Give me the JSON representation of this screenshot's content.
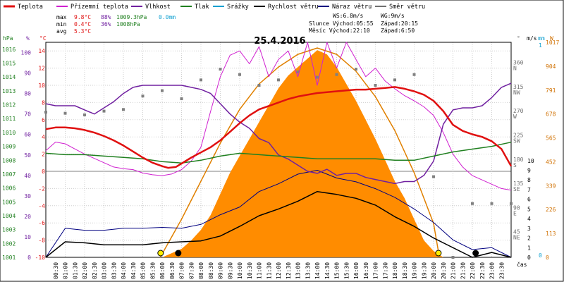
{
  "chart_data": {
    "type": "line",
    "title": "25.4.2016",
    "legend": [
      {
        "name": "Teplota",
        "color": "#e01010"
      },
      {
        "name": "Přízemní teplota",
        "color": "#d020d0"
      },
      {
        "name": "Vlhkost",
        "color": "#7020a0"
      },
      {
        "name": "Tlak",
        "color": "#208020"
      },
      {
        "name": "Srážky",
        "color": "#10a0d0"
      },
      {
        "name": "Rychlost větru",
        "color": "#000000"
      },
      {
        "name": "Náraz větru",
        "color": "#000080"
      },
      {
        "name": "Směr větru",
        "color": "#707070"
      }
    ],
    "stats": {
      "labels": [
        "max",
        "min",
        "avg"
      ],
      "temp": [
        "9.8°C",
        "0.4°C",
        "5.3°C"
      ],
      "hum": [
        "88%",
        "36%",
        ""
      ],
      "press": [
        "1009.3hPa",
        "1008hPa",
        ""
      ],
      "rain": [
        "0.0mm",
        "",
        ""
      ]
    },
    "info": {
      "ws": "WS:6.8m/s",
      "wg": "WG:9m/s",
      "sun_rise": "Slunce Východ:05:55",
      "sun_set": "Západ:20:15",
      "moon_rise": "Měsíc Východ:22:10",
      "moon_set": "Západ:6:50"
    },
    "axes": {
      "hpa_unit": "hPa",
      "pct_unit": "%",
      "c_unit": "°C",
      "deg_unit": "°",
      "ms_unit": "m/s",
      "mm_unit": "mm",
      "w_unit": "W",
      "time_label": "čas",
      "hpa_ticks": [
        "1001",
        "1002",
        "1003",
        "1004",
        "1005",
        "1006",
        "1007",
        "1008",
        "1009",
        "1010",
        "1011",
        "1012",
        "1013",
        "1014",
        "1015",
        "1016"
      ],
      "pct_ticks": [
        "0",
        "10",
        "20",
        "30",
        "40",
        "50",
        "60",
        "70",
        "80",
        "90",
        "100"
      ],
      "c_ticks": [
        "-10",
        "-8",
        "-6",
        "-4",
        "-2",
        "0",
        "2",
        "4",
        "6",
        "8",
        "10",
        "12",
        "14"
      ],
      "deg_ticks": [
        "45",
        "90",
        "135",
        "180",
        "225",
        "270",
        "315",
        "360"
      ],
      "dir_ticks": [
        "NE",
        "E",
        "SE",
        "S",
        "SW",
        "W",
        "NW",
        "N"
      ],
      "ms_ticks": [
        "0",
        "1",
        "2",
        "3",
        "4",
        "5",
        "6",
        "7",
        "8",
        "9",
        "10"
      ],
      "mm_ticks": [
        "0",
        "1"
      ],
      "w_ticks": [
        "0",
        "113",
        "226",
        "339",
        "452",
        "565",
        "678",
        "791",
        "904",
        "1017"
      ],
      "x_ticks": [
        "00:30",
        "01:00",
        "01:30",
        "02:00",
        "02:30",
        "03:00",
        "03:30",
        "04:00",
        "04:30",
        "05:00",
        "05:30",
        "06:00",
        "06:30",
        "07:00",
        "07:30",
        "08:00",
        "08:30",
        "09:00",
        "09:30",
        "10:00",
        "10:30",
        "11:00",
        "11:30",
        "12:00",
        "12:30",
        "13:00",
        "13:30",
        "14:00",
        "14:30",
        "15:00",
        "15:30",
        "16:00",
        "16:30",
        "17:00",
        "17:30",
        "18:00",
        "18:30",
        "19:00",
        "19:30",
        "20:00",
        "20:30",
        "21:00",
        "21:30",
        "22:00",
        "22:30",
        "23:00",
        "23:30"
      ]
    },
    "ranges": {
      "hours": [
        0,
        24
      ],
      "temp_c": [
        -10,
        15
      ],
      "humidity_pct": [
        0,
        105
      ],
      "pressure_hpa": [
        1001,
        1016.5
      ],
      "wind_ms": [
        0,
        10
      ],
      "radiation_w": [
        0,
        1017
      ],
      "direction_deg": [
        0,
        400
      ]
    },
    "series": {
      "teplota": [
        [
          0,
          4.9
        ],
        [
          0.5,
          5.1
        ],
        [
          1,
          5.1
        ],
        [
          1.5,
          5
        ],
        [
          2,
          4.8
        ],
        [
          2.5,
          4.5
        ],
        [
          3,
          4.1
        ],
        [
          3.5,
          3.6
        ],
        [
          4,
          3
        ],
        [
          4.5,
          2.3
        ],
        [
          5,
          1.6
        ],
        [
          5.5,
          1
        ],
        [
          6,
          0.6
        ],
        [
          6.3,
          0.4
        ],
        [
          6.7,
          0.5
        ],
        [
          7,
          0.9
        ],
        [
          7.5,
          1.6
        ],
        [
          8,
          2.2
        ],
        [
          8.5,
          2.8
        ],
        [
          9,
          3.6
        ],
        [
          9.5,
          4.6
        ],
        [
          10,
          5.6
        ],
        [
          10.5,
          6.5
        ],
        [
          11,
          7.2
        ],
        [
          11.5,
          7.6
        ],
        [
          12,
          8
        ],
        [
          12.5,
          8.4
        ],
        [
          13,
          8.7
        ],
        [
          13.5,
          8.9
        ],
        [
          14,
          9.1
        ],
        [
          14.5,
          9.2
        ],
        [
          15,
          9.3
        ],
        [
          15.5,
          9.4
        ],
        [
          16,
          9.5
        ],
        [
          16.5,
          9.5
        ],
        [
          17,
          9.6
        ],
        [
          17.5,
          9.7
        ],
        [
          18,
          9.8
        ],
        [
          18.5,
          9.6
        ],
        [
          19,
          9.3
        ],
        [
          19.5,
          8.9
        ],
        [
          20,
          8.2
        ],
        [
          20.5,
          7
        ],
        [
          21,
          5.4
        ],
        [
          21.5,
          4.7
        ],
        [
          22,
          4.3
        ],
        [
          22.5,
          4
        ],
        [
          23,
          3.5
        ],
        [
          23.5,
          2.6
        ],
        [
          24,
          0.6
        ]
      ],
      "prizemni": [
        [
          0,
          2.4
        ],
        [
          0.5,
          3.4
        ],
        [
          1,
          3.2
        ],
        [
          1.5,
          2.6
        ],
        [
          2,
          2
        ],
        [
          2.5,
          1.5
        ],
        [
          3,
          1
        ],
        [
          3.5,
          0.5
        ],
        [
          4,
          0.3
        ],
        [
          4.5,
          0.2
        ],
        [
          5,
          -0.2
        ],
        [
          5.5,
          -0.4
        ],
        [
          6,
          -0.5
        ],
        [
          6.5,
          -0.3
        ],
        [
          7,
          0.2
        ],
        [
          7.5,
          1.2
        ],
        [
          8,
          2.8
        ],
        [
          8.5,
          7
        ],
        [
          9,
          11
        ],
        [
          9.5,
          13.5
        ],
        [
          10,
          14
        ],
        [
          10.5,
          12.5
        ],
        [
          11,
          14.5
        ],
        [
          11.5,
          11
        ],
        [
          12,
          13
        ],
        [
          12.5,
          14
        ],
        [
          13,
          11
        ],
        [
          13.5,
          15
        ],
        [
          14,
          10
        ],
        [
          14.5,
          15
        ],
        [
          15,
          12
        ],
        [
          15.5,
          15
        ],
        [
          16,
          13
        ],
        [
          16.5,
          11
        ],
        [
          17,
          12
        ],
        [
          17.5,
          10.5
        ],
        [
          18,
          9.6
        ],
        [
          18.5,
          8.8
        ],
        [
          19,
          8.2
        ],
        [
          19.5,
          7.5
        ],
        [
          20,
          6.5
        ],
        [
          20.5,
          4.5
        ],
        [
          21,
          2
        ],
        [
          21.5,
          0.5
        ],
        [
          22,
          -0.5
        ],
        [
          22.5,
          -1
        ],
        [
          23,
          -1.5
        ],
        [
          23.5,
          -2
        ],
        [
          24,
          -2.2
        ]
      ],
      "vlhkost": [
        [
          0,
          75
        ],
        [
          0.5,
          74
        ],
        [
          1,
          74
        ],
        [
          1.5,
          74
        ],
        [
          2,
          72
        ],
        [
          2.5,
          70
        ],
        [
          3,
          73
        ],
        [
          3.5,
          76
        ],
        [
          4,
          80
        ],
        [
          4.5,
          83
        ],
        [
          5,
          84
        ],
        [
          5.5,
          84
        ],
        [
          6,
          84
        ],
        [
          6.5,
          84
        ],
        [
          7,
          84
        ],
        [
          7.5,
          83
        ],
        [
          8,
          82
        ],
        [
          8.5,
          80
        ],
        [
          9,
          75
        ],
        [
          9.5,
          70
        ],
        [
          10,
          66
        ],
        [
          10.5,
          63
        ],
        [
          11,
          58
        ],
        [
          11.5,
          56
        ],
        [
          12,
          50
        ],
        [
          12.5,
          48
        ],
        [
          13,
          45
        ],
        [
          13.5,
          42
        ],
        [
          14,
          41
        ],
        [
          14.5,
          43
        ],
        [
          15,
          40
        ],
        [
          15.5,
          41
        ],
        [
          16,
          41
        ],
        [
          16.5,
          39
        ],
        [
          17,
          38
        ],
        [
          17.5,
          37
        ],
        [
          18,
          36
        ],
        [
          18.5,
          37
        ],
        [
          19,
          37
        ],
        [
          19.5,
          40
        ],
        [
          20,
          47
        ],
        [
          20.5,
          65
        ],
        [
          21,
          72
        ],
        [
          21.5,
          73
        ],
        [
          22,
          73
        ],
        [
          22.5,
          74
        ],
        [
          23,
          78
        ],
        [
          23.5,
          83
        ],
        [
          24,
          85
        ]
      ],
      "tlak": [
        [
          0,
          1008.5
        ],
        [
          1,
          1008.4
        ],
        [
          2,
          1008.4
        ],
        [
          3,
          1008.3
        ],
        [
          4,
          1008.2
        ],
        [
          5,
          1008.1
        ],
        [
          6,
          1007.9
        ],
        [
          7,
          1007.8
        ],
        [
          8,
          1008
        ],
        [
          9,
          1008.3
        ],
        [
          10,
          1008.5
        ],
        [
          11,
          1008.4
        ],
        [
          12,
          1008.3
        ],
        [
          13,
          1008.2
        ],
        [
          14,
          1008.1
        ],
        [
          15,
          1008.1
        ],
        [
          16,
          1008.1
        ],
        [
          17,
          1008.1
        ],
        [
          18,
          1008
        ],
        [
          19,
          1008
        ],
        [
          20,
          1008.3
        ],
        [
          21,
          1008.6
        ],
        [
          22,
          1008.8
        ],
        [
          23,
          1009
        ],
        [
          24,
          1009.3
        ]
      ],
      "rychlost": [
        [
          0,
          0
        ],
        [
          1,
          1.6
        ],
        [
          2,
          1.5
        ],
        [
          3,
          1.3
        ],
        [
          4,
          1.3
        ],
        [
          5,
          1.3
        ],
        [
          6,
          1.5
        ],
        [
          7,
          1.6
        ],
        [
          8,
          1.7
        ],
        [
          9,
          2.2
        ],
        [
          10,
          3.2
        ],
        [
          11,
          4.3
        ],
        [
          12,
          5
        ],
        [
          13,
          5.8
        ],
        [
          14,
          6.8
        ],
        [
          15,
          6.5
        ],
        [
          16,
          6.1
        ],
        [
          17,
          5.4
        ],
        [
          18,
          4.2
        ],
        [
          19,
          3.2
        ],
        [
          20,
          2
        ],
        [
          21,
          1
        ],
        [
          22,
          0
        ],
        [
          23,
          0.5
        ],
        [
          24,
          0
        ]
      ],
      "naraz": [
        [
          0,
          0
        ],
        [
          1,
          3
        ],
        [
          2,
          2.8
        ],
        [
          3,
          2.8
        ],
        [
          4,
          3
        ],
        [
          5,
          3
        ],
        [
          6,
          3.1
        ],
        [
          7,
          3
        ],
        [
          8,
          3.4
        ],
        [
          9,
          4.4
        ],
        [
          10,
          5.2
        ],
        [
          11,
          6.8
        ],
        [
          12,
          7.6
        ],
        [
          13,
          8.6
        ],
        [
          14,
          9
        ],
        [
          15,
          8.2
        ],
        [
          16,
          7.8
        ],
        [
          17,
          7.1
        ],
        [
          18,
          6.2
        ],
        [
          19,
          5
        ],
        [
          20,
          3.6
        ],
        [
          21,
          1.8
        ],
        [
          22,
          0.8
        ],
        [
          23,
          1
        ],
        [
          24,
          0
        ]
      ],
      "smer": [
        [
          0,
          270
        ],
        [
          1,
          268
        ],
        [
          2,
          265
        ],
        [
          3,
          272
        ],
        [
          4,
          275
        ],
        [
          5,
          300
        ],
        [
          6,
          310
        ],
        [
          7,
          295
        ],
        [
          8,
          330
        ],
        [
          9,
          350
        ],
        [
          10,
          340
        ],
        [
          11,
          320
        ],
        [
          12,
          330
        ],
        [
          13,
          345
        ],
        [
          14,
          335
        ],
        [
          15,
          340
        ],
        [
          16,
          350
        ],
        [
          17,
          320
        ],
        [
          18,
          330
        ],
        [
          19,
          340
        ],
        [
          20,
          150
        ],
        [
          21,
          0
        ],
        [
          22,
          100
        ],
        [
          23,
          100
        ],
        [
          24,
          100
        ]
      ],
      "radiace": [
        [
          0,
          0
        ],
        [
          6,
          0
        ],
        [
          6.5,
          20
        ],
        [
          7,
          40
        ],
        [
          7.5,
          80
        ],
        [
          8,
          130
        ],
        [
          8.5,
          200
        ],
        [
          9,
          300
        ],
        [
          9.5,
          400
        ],
        [
          10,
          480
        ],
        [
          10.5,
          560
        ],
        [
          11,
          640
        ],
        [
          11.5,
          720
        ],
        [
          12,
          800
        ],
        [
          12.5,
          860
        ],
        [
          13,
          900
        ],
        [
          13.5,
          940
        ],
        [
          14,
          980
        ],
        [
          14.5,
          960
        ],
        [
          15,
          900
        ],
        [
          15.5,
          820
        ],
        [
          16,
          740
        ],
        [
          16.5,
          650
        ],
        [
          17,
          560
        ],
        [
          17.5,
          460
        ],
        [
          18,
          360
        ],
        [
          18.5,
          280
        ],
        [
          19,
          180
        ],
        [
          19.5,
          80
        ],
        [
          20,
          30
        ],
        [
          20.5,
          0
        ],
        [
          24,
          0
        ]
      ],
      "solar_theoretical": [
        [
          5.9,
          0
        ],
        [
          7,
          180
        ],
        [
          8,
          360
        ],
        [
          9,
          540
        ],
        [
          10,
          700
        ],
        [
          11,
          820
        ],
        [
          12,
          900
        ],
        [
          13,
          960
        ],
        [
          14,
          990
        ],
        [
          15,
          960
        ],
        [
          16,
          880
        ],
        [
          17,
          760
        ],
        [
          18,
          600
        ],
        [
          19,
          400
        ],
        [
          20,
          160
        ],
        [
          20.3,
          0
        ]
      ]
    }
  }
}
